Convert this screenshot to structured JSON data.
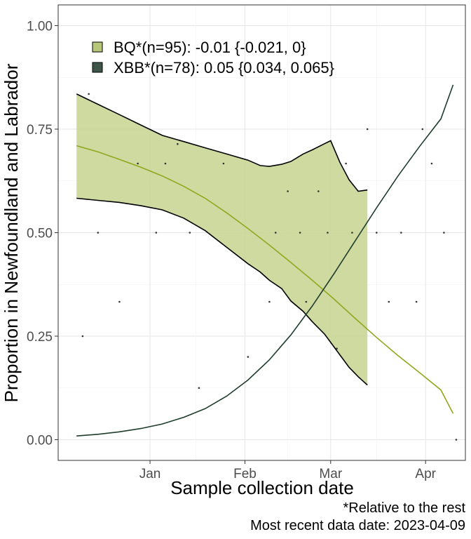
{
  "chart_data": {
    "type": "line",
    "xlabel": "Sample collection date",
    "ylabel": "Proportion in Newfoundland and Labrador",
    "x_range": [
      "2022-12-02",
      "2023-04-14"
    ],
    "ylim": [
      -0.05,
      1.05
    ],
    "x_ticks": [
      {
        "date": "2023-01-01",
        "label": "Jan"
      },
      {
        "date": "2023-02-01",
        "label": "Feb"
      },
      {
        "date": "2023-03-01",
        "label": "Mar"
      },
      {
        "date": "2023-04-01",
        "label": "Apr"
      }
    ],
    "y_ticks": [
      {
        "value": 0.0,
        "label": "0.00"
      },
      {
        "value": 0.25,
        "label": "0.25"
      },
      {
        "value": 0.5,
        "label": "0.50"
      },
      {
        "value": 0.75,
        "label": "0.75"
      },
      {
        "value": 1.0,
        "label": "1.00"
      }
    ],
    "grid": true,
    "legend_position": "top-left",
    "series": [
      {
        "name": "BQ*(n=95): -0.01 {-0.021, 0}",
        "color": "#8fa81f",
        "fill": "#c6d48f",
        "fit": {
          "x": [
            "2022-12-08",
            "2022-12-15",
            "2022-12-22",
            "2022-12-29",
            "2023-01-05",
            "2023-01-12",
            "2023-01-19",
            "2023-01-26",
            "2023-02-02",
            "2023-02-09",
            "2023-02-16",
            "2023-02-23",
            "2023-03-02",
            "2023-03-09",
            "2023-03-16",
            "2023-03-23",
            "2023-03-30",
            "2023-04-06",
            "2023-04-10"
          ],
          "y": [
            0.71,
            0.695,
            0.677,
            0.658,
            0.637,
            0.612,
            0.583,
            0.548,
            0.51,
            0.47,
            0.428,
            0.385,
            0.34,
            0.293,
            0.247,
            0.203,
            0.162,
            0.12,
            0.063
          ]
        },
        "ribbon": {
          "x": [
            "2022-12-08",
            "2022-12-15",
            "2022-12-22",
            "2022-12-29",
            "2023-01-05",
            "2023-01-12",
            "2023-01-19",
            "2023-01-26",
            "2023-02-02",
            "2023-02-06",
            "2023-02-09",
            "2023-02-13",
            "2023-02-16",
            "2023-02-20",
            "2023-02-23",
            "2023-02-27",
            "2023-03-01",
            "2023-03-04",
            "2023-03-07",
            "2023-03-10",
            "2023-03-13"
          ],
          "upper": [
            0.835,
            0.81,
            0.785,
            0.76,
            0.735,
            0.72,
            0.705,
            0.69,
            0.675,
            0.662,
            0.66,
            0.665,
            0.672,
            0.69,
            0.7,
            0.715,
            0.722,
            0.67,
            0.628,
            0.6,
            0.603
          ],
          "lower": [
            0.583,
            0.578,
            0.573,
            0.565,
            0.555,
            0.535,
            0.505,
            0.465,
            0.425,
            0.405,
            0.385,
            0.365,
            0.335,
            0.31,
            0.285,
            0.255,
            0.235,
            0.205,
            0.175,
            0.152,
            0.132
          ]
        }
      },
      {
        "name": "XBB*(n=78): 0.05 {0.034, 0.065}",
        "color": "#1e3d2d",
        "fill": "#3d5648",
        "fit": {
          "x": [
            "2022-12-08",
            "2022-12-15",
            "2022-12-22",
            "2022-12-29",
            "2023-01-05",
            "2023-01-12",
            "2023-01-19",
            "2023-01-26",
            "2023-02-02",
            "2023-02-09",
            "2023-02-16",
            "2023-02-23",
            "2023-03-02",
            "2023-03-09",
            "2023-03-16",
            "2023-03-23",
            "2023-03-30",
            "2023-04-06",
            "2023-04-10"
          ],
          "y": [
            0.009,
            0.013,
            0.019,
            0.027,
            0.038,
            0.054,
            0.075,
            0.105,
            0.144,
            0.193,
            0.253,
            0.323,
            0.4,
            0.48,
            0.56,
            0.637,
            0.708,
            0.775,
            0.857
          ]
        }
      }
    ],
    "observations": {
      "x": [
        "2022-12-10",
        "2022-12-12",
        "2022-12-15",
        "2022-12-22",
        "2022-12-28",
        "2023-01-03",
        "2023-01-06",
        "2023-01-10",
        "2023-01-14",
        "2023-01-17",
        "2023-01-25",
        "2023-02-02",
        "2023-02-09",
        "2023-02-11",
        "2023-02-15",
        "2023-02-19",
        "2023-02-21",
        "2023-02-25",
        "2023-02-28",
        "2023-03-03",
        "2023-03-06",
        "2023-03-08",
        "2023-03-13",
        "2023-03-16",
        "2023-03-20",
        "2023-03-24",
        "2023-03-29",
        "2023-03-31",
        "2023-04-03",
        "2023-04-07",
        "2023-04-11"
      ],
      "y": [
        0.25,
        0.835,
        0.5,
        0.333,
        0.667,
        0.5,
        0.667,
        0.714,
        0.5,
        0.125,
        0.667,
        0.2,
        0.333,
        0.5,
        0.6,
        0.5,
        0.333,
        0.6,
        0.5,
        0.22,
        0.667,
        0.5,
        0.75,
        0.5,
        0.333,
        0.5,
        0.333,
        0.75,
        0.667,
        0.5,
        0.0
      ]
    }
  },
  "legend": [
    {
      "label": "BQ*(n=95): -0.01 {-0.021, 0}",
      "swatch_color": "#b7c77a"
    },
    {
      "label": "XBB*(n=78): 0.05 {0.034, 0.065}",
      "swatch_color": "#3d5648"
    }
  ],
  "caption": {
    "line1": "*Relative to the rest",
    "line2": "Most recent data date: 2023-04-09"
  }
}
